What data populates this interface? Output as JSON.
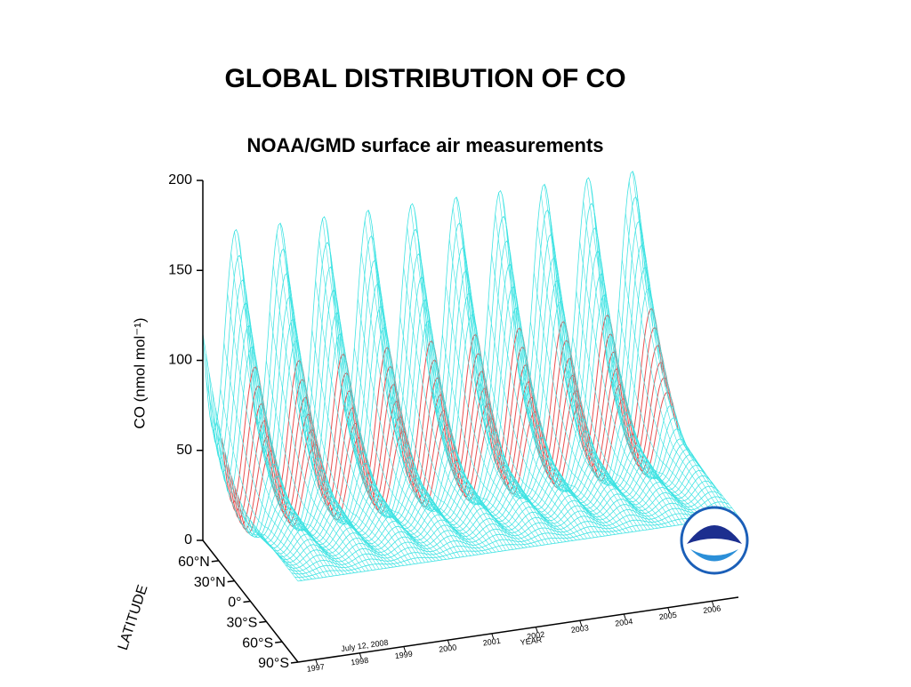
{
  "chart_data": {
    "type": "surface3d",
    "title": "GLOBAL DISTRIBUTION OF CO",
    "subtitle": "NOAA/GMD surface air measurements",
    "zlabel": "CO (nmol mol⁻¹)",
    "ylabel": "LATITUDE",
    "xlabel": "YEAR",
    "annotation": "July 12, 2008",
    "zlim": [
      0,
      200
    ],
    "zticks": [
      0,
      50,
      100,
      150,
      200
    ],
    "ylim": [
      -90,
      90
    ],
    "yticks": [
      {
        "value": 60,
        "label": "60°N"
      },
      {
        "value": 30,
        "label": "30°N"
      },
      {
        "value": 0,
        "label": "0°"
      },
      {
        "value": -30,
        "label": "30°S"
      },
      {
        "value": -60,
        "label": "60°S"
      },
      {
        "value": -90,
        "label": "90°S"
      }
    ],
    "xlim": [
      1996.6,
      2006.6
    ],
    "xticks": [
      1997,
      1998,
      1999,
      2000,
      2001,
      2002,
      2003,
      2004,
      2005,
      2006
    ],
    "color": "#3fe3e3",
    "highlight_color": "#e85050",
    "text_color": "#2a2fc8"
  }
}
